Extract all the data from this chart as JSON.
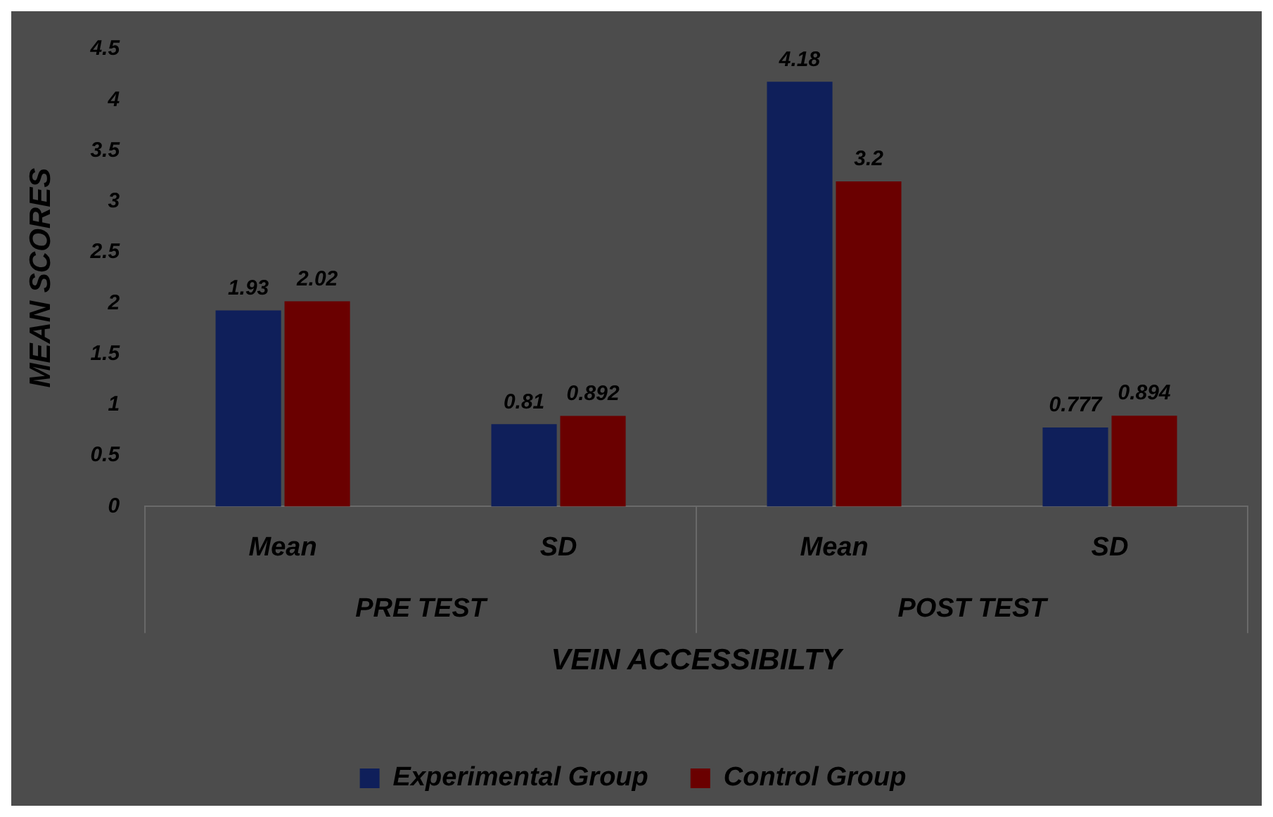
{
  "chart_data": {
    "type": "bar",
    "xlabel": "VEIN ACCESSIBILTY",
    "ylabel": "MEAN SCORES",
    "categories": [
      "Mean",
      "SD",
      "Mean",
      "SD"
    ],
    "annotations": [
      "PRE TEST",
      "POST TEST"
    ],
    "series": [
      {
        "name": "Experimental Group",
        "color": "#0f1f5a",
        "values": [
          1.93,
          0.81,
          4.18,
          0.777
        ]
      },
      {
        "name": "Control Group",
        "color": "#6a0000",
        "values": [
          2.02,
          0.892,
          3.2,
          0.894
        ]
      }
    ],
    "ylim": [
      0,
      4.5
    ],
    "yticks": [
      0,
      0.5,
      1,
      1.5,
      2,
      2.5,
      3,
      3.5,
      4,
      4.5
    ],
    "grid": false,
    "legend": "bottom",
    "data_labels": true
  }
}
